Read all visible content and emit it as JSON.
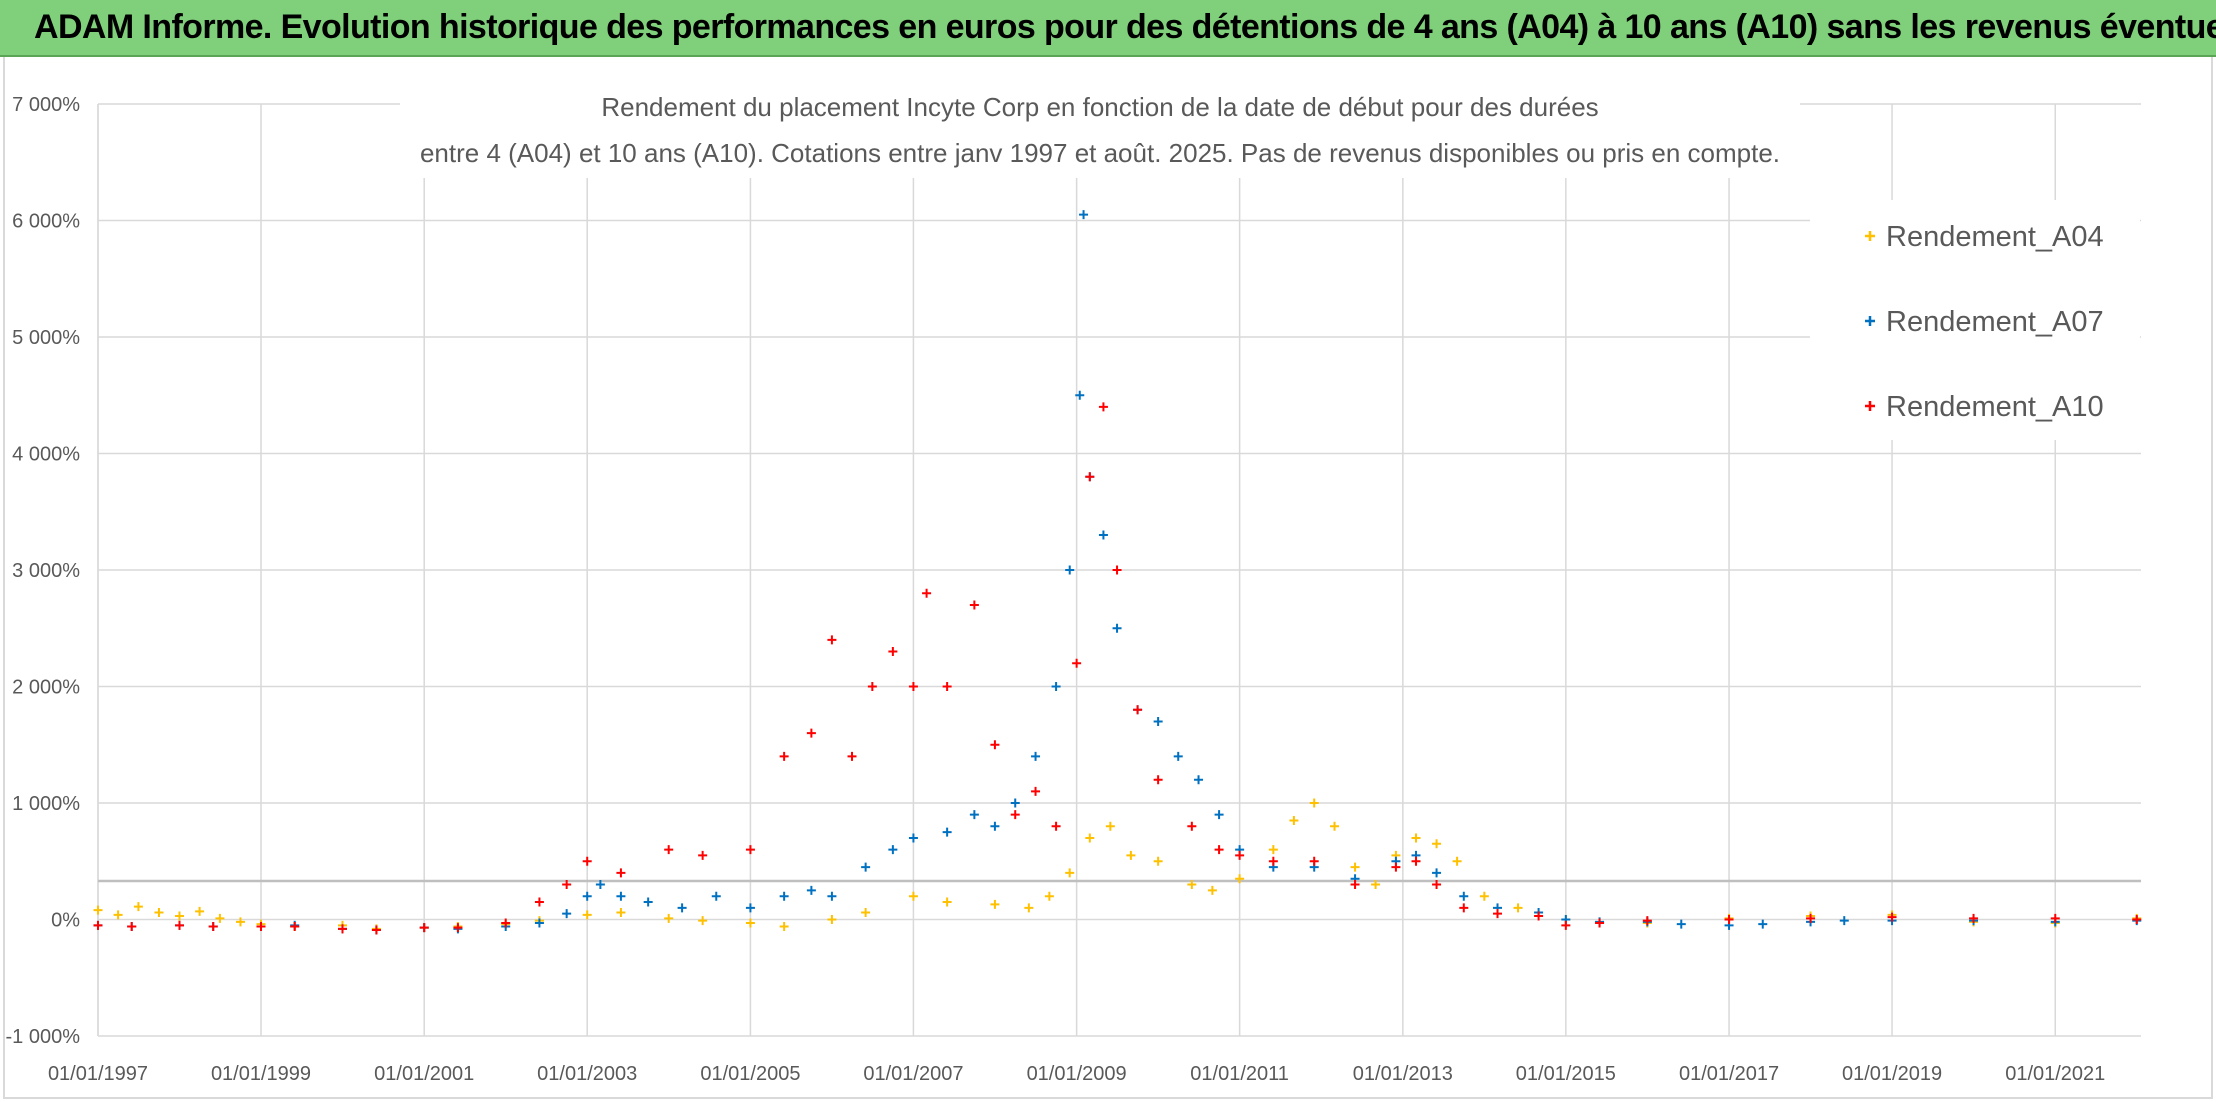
{
  "header": {
    "title": "ADAM Informe. Evolution historique des performances en euros pour des détentions de 4 ans (A04) à 10 ans (A10) sans les revenus éventuels"
  },
  "colors": {
    "banner": "#7fcf7b",
    "A04": "#ffc000",
    "A07": "#0070c0",
    "A10": "#ff0000",
    "grid": "#d9d9d9",
    "text": "#595959"
  },
  "chart_data": {
    "type": "scatter",
    "title_lines": [
      "Rendement du placement Incyte Corp en fonction de la date de début pour des durées",
      "entre 4 (A04) et 10 ans (A10). Cotations entre janv 1997 et août. 2025. Pas de revenus disponibles ou pris en compte."
    ],
    "xlabel": "",
    "ylabel": "",
    "x_ticks": [
      "01/01/1997",
      "01/01/1999",
      "01/01/2001",
      "01/01/2003",
      "01/01/2005",
      "01/01/2007",
      "01/01/2009",
      "01/01/2011",
      "01/01/2013",
      "01/01/2015",
      "01/01/2017",
      "01/01/2019",
      "01/01/2021"
    ],
    "xlim": [
      "1997-01-01",
      "2022-01-20"
    ],
    "y_ticks": [
      "-1 000%",
      "0%",
      "1 000%",
      "2 000%",
      "3 000%",
      "4 000%",
      "5 000%",
      "6 000%",
      "7 000%"
    ],
    "ylim": [
      -1000,
      7000
    ],
    "reference_line_y": 330,
    "grid": true,
    "legend_position": "top-right",
    "series": [
      {
        "name": "Rendement_A04",
        "color": "#ffc000",
        "points": [
          [
            "1997-01-01",
            80
          ],
          [
            "1997-04-01",
            40
          ],
          [
            "1997-07-01",
            110
          ],
          [
            "1997-10-01",
            60
          ],
          [
            "1998-01-01",
            30
          ],
          [
            "1998-04-01",
            70
          ],
          [
            "1998-07-01",
            10
          ],
          [
            "1998-10-01",
            -20
          ],
          [
            "1999-01-01",
            -40
          ],
          [
            "1999-06-01",
            -60
          ],
          [
            "2000-01-01",
            -50
          ],
          [
            "2000-06-01",
            -80
          ],
          [
            "2001-01-01",
            -70
          ],
          [
            "2001-06-01",
            -60
          ],
          [
            "2002-01-01",
            -40
          ],
          [
            "2002-06-01",
            -10
          ],
          [
            "2003-01-01",
            40
          ],
          [
            "2003-06-01",
            60
          ],
          [
            "2004-01-01",
            10
          ],
          [
            "2004-06-01",
            -10
          ],
          [
            "2005-01-01",
            -30
          ],
          [
            "2005-06-01",
            -60
          ],
          [
            "2006-01-01",
            0
          ],
          [
            "2006-06-01",
            60
          ],
          [
            "2007-01-01",
            200
          ],
          [
            "2007-06-01",
            150
          ],
          [
            "2008-01-01",
            130
          ],
          [
            "2008-06-01",
            100
          ],
          [
            "2008-09-01",
            200
          ],
          [
            "2008-12-01",
            400
          ],
          [
            "2009-03-01",
            700
          ],
          [
            "2009-06-01",
            800
          ],
          [
            "2009-09-01",
            550
          ],
          [
            "2010-01-01",
            500
          ],
          [
            "2010-06-01",
            300
          ],
          [
            "2010-09-01",
            250
          ],
          [
            "2011-01-01",
            350
          ],
          [
            "2011-06-01",
            600
          ],
          [
            "2011-09-01",
            850
          ],
          [
            "2011-12-01",
            1000
          ],
          [
            "2012-03-01",
            800
          ],
          [
            "2012-06-01",
            450
          ],
          [
            "2012-09-01",
            300
          ],
          [
            "2012-12-01",
            550
          ],
          [
            "2013-03-01",
            700
          ],
          [
            "2013-06-01",
            650
          ],
          [
            "2013-09-01",
            500
          ],
          [
            "2014-01-01",
            200
          ],
          [
            "2014-06-01",
            100
          ],
          [
            "2015-01-01",
            0
          ],
          [
            "2016-01-01",
            -30
          ],
          [
            "2017-01-01",
            10
          ],
          [
            "2018-01-01",
            30
          ],
          [
            "2019-01-01",
            40
          ],
          [
            "2020-01-01",
            -20
          ],
          [
            "2021-01-01",
            -30
          ],
          [
            "2022-01-01",
            10
          ]
        ]
      },
      {
        "name": "Rendement_A07",
        "color": "#0070c0",
        "points": [
          [
            "1997-01-01",
            -50
          ],
          [
            "1997-06-01",
            -60
          ],
          [
            "1998-01-01",
            -50
          ],
          [
            "1998-06-01",
            -60
          ],
          [
            "1999-01-01",
            -60
          ],
          [
            "1999-06-01",
            -50
          ],
          [
            "2000-01-01",
            -80
          ],
          [
            "2000-06-01",
            -90
          ],
          [
            "2001-01-01",
            -70
          ],
          [
            "2001-06-01",
            -80
          ],
          [
            "2002-01-01",
            -60
          ],
          [
            "2002-06-01",
            -30
          ],
          [
            "2002-10-01",
            50
          ],
          [
            "2003-01-01",
            200
          ],
          [
            "2003-03-01",
            300
          ],
          [
            "2003-06-01",
            200
          ],
          [
            "2003-10-01",
            150
          ],
          [
            "2004-03-01",
            100
          ],
          [
            "2004-08-01",
            200
          ],
          [
            "2005-01-01",
            100
          ],
          [
            "2005-06-01",
            200
          ],
          [
            "2005-10-01",
            250
          ],
          [
            "2006-01-01",
            200
          ],
          [
            "2006-06-01",
            450
          ],
          [
            "2006-10-01",
            600
          ],
          [
            "2007-01-01",
            700
          ],
          [
            "2007-06-01",
            750
          ],
          [
            "2007-10-01",
            900
          ],
          [
            "2008-01-01",
            800
          ],
          [
            "2008-04-01",
            1000
          ],
          [
            "2008-07-01",
            1400
          ],
          [
            "2008-10-01",
            2000
          ],
          [
            "2008-12-01",
            3000
          ],
          [
            "2009-01-15",
            4500
          ],
          [
            "2009-02-01",
            6050
          ],
          [
            "2009-03-01",
            3800
          ],
          [
            "2009-05-01",
            3300
          ],
          [
            "2009-07-01",
            2500
          ],
          [
            "2009-10-01",
            1800
          ],
          [
            "2010-01-01",
            1700
          ],
          [
            "2010-04-01",
            1400
          ],
          [
            "2010-07-01",
            1200
          ],
          [
            "2010-10-01",
            900
          ],
          [
            "2011-01-01",
            600
          ],
          [
            "2011-06-01",
            450
          ],
          [
            "2011-12-01",
            450
          ],
          [
            "2012-06-01",
            350
          ],
          [
            "2012-12-01",
            500
          ],
          [
            "2013-03-01",
            550
          ],
          [
            "2013-06-01",
            400
          ],
          [
            "2013-10-01",
            200
          ],
          [
            "2014-03-01",
            100
          ],
          [
            "2014-09-01",
            60
          ],
          [
            "2015-01-01",
            0
          ],
          [
            "2015-06-01",
            -20
          ],
          [
            "2016-01-01",
            -20
          ],
          [
            "2016-06-01",
            -40
          ],
          [
            "2017-01-01",
            -50
          ],
          [
            "2017-06-01",
            -40
          ],
          [
            "2018-01-01",
            -20
          ],
          [
            "2018-06-01",
            -10
          ],
          [
            "2019-01-01",
            -10
          ],
          [
            "2020-01-01",
            -10
          ],
          [
            "2021-01-01",
            -20
          ],
          [
            "2022-01-01",
            -10
          ]
        ]
      },
      {
        "name": "Rendement_A10",
        "color": "#ff0000",
        "points": [
          [
            "1997-01-01",
            -50
          ],
          [
            "1997-06-01",
            -60
          ],
          [
            "1998-01-01",
            -50
          ],
          [
            "1998-06-01",
            -60
          ],
          [
            "1999-01-01",
            -60
          ],
          [
            "1999-06-01",
            -60
          ],
          [
            "2000-01-01",
            -80
          ],
          [
            "2000-06-01",
            -90
          ],
          [
            "2001-01-01",
            -70
          ],
          [
            "2001-06-01",
            -70
          ],
          [
            "2002-01-01",
            -30
          ],
          [
            "2002-06-01",
            150
          ],
          [
            "2002-10-01",
            300
          ],
          [
            "2003-01-01",
            500
          ],
          [
            "2003-06-01",
            400
          ],
          [
            "2004-01-01",
            600
          ],
          [
            "2004-06-01",
            550
          ],
          [
            "2005-01-01",
            600
          ],
          [
            "2005-06-01",
            1400
          ],
          [
            "2005-10-01",
            1600
          ],
          [
            "2006-01-01",
            2400
          ],
          [
            "2006-04-01",
            1400
          ],
          [
            "2006-07-01",
            2000
          ],
          [
            "2006-10-01",
            2300
          ],
          [
            "2007-01-01",
            2000
          ],
          [
            "2007-03-01",
            2800
          ],
          [
            "2007-06-01",
            2000
          ],
          [
            "2007-10-01",
            2700
          ],
          [
            "2008-01-01",
            1500
          ],
          [
            "2008-04-01",
            900
          ],
          [
            "2008-07-01",
            1100
          ],
          [
            "2008-10-01",
            800
          ],
          [
            "2009-01-01",
            2200
          ],
          [
            "2009-03-01",
            3800
          ],
          [
            "2009-05-01",
            4400
          ],
          [
            "2009-07-01",
            3000
          ],
          [
            "2009-10-01",
            1800
          ],
          [
            "2010-01-01",
            1200
          ],
          [
            "2010-06-01",
            800
          ],
          [
            "2010-10-01",
            600
          ],
          [
            "2011-01-01",
            550
          ],
          [
            "2011-06-01",
            500
          ],
          [
            "2011-12-01",
            500
          ],
          [
            "2012-06-01",
            300
          ],
          [
            "2012-12-01",
            450
          ],
          [
            "2013-03-01",
            500
          ],
          [
            "2013-06-01",
            300
          ],
          [
            "2013-10-01",
            100
          ],
          [
            "2014-03-01",
            50
          ],
          [
            "2014-09-01",
            30
          ],
          [
            "2015-01-01",
            -50
          ],
          [
            "2015-06-01",
            -30
          ],
          [
            "2016-01-01",
            -10
          ],
          [
            "2017-01-01",
            0
          ],
          [
            "2018-01-01",
            10
          ],
          [
            "2019-01-01",
            20
          ],
          [
            "2020-01-01",
            10
          ],
          [
            "2021-01-01",
            10
          ],
          [
            "2022-01-01",
            0
          ]
        ]
      }
    ]
  }
}
